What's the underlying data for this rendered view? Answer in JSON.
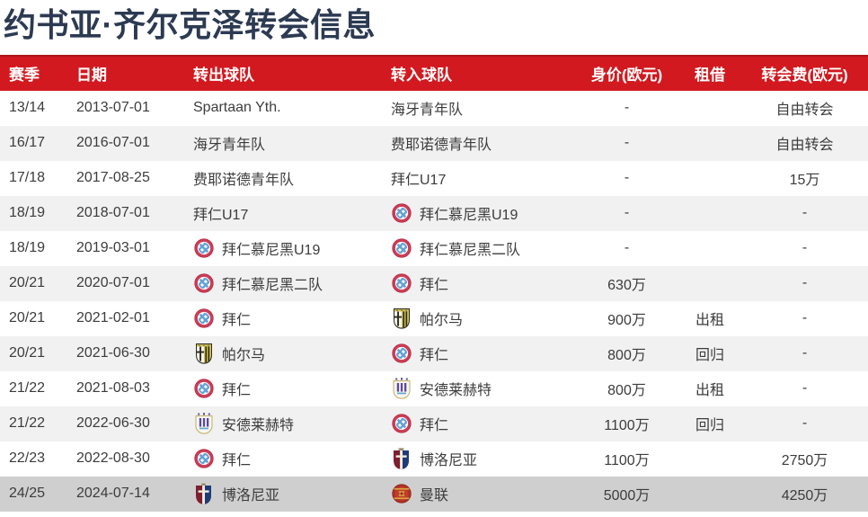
{
  "page": {
    "title": "约书亚·齐尔克泽转会信息"
  },
  "table": {
    "columns": [
      "赛季",
      "日期",
      "转出球队",
      "转入球队",
      "身价(欧元)",
      "租借",
      "转会费(欧元)"
    ],
    "rows": [
      {
        "season": "13/14",
        "date": "2013-07-01",
        "from": {
          "name": "Spartaan Yth.",
          "logo": ""
        },
        "to": {
          "name": "海牙青年队",
          "logo": ""
        },
        "value": "-",
        "loan": "",
        "fee": "自由转会",
        "highlight": false
      },
      {
        "season": "16/17",
        "date": "2016-07-01",
        "from": {
          "name": "海牙青年队",
          "logo": ""
        },
        "to": {
          "name": "费耶诺德青年队",
          "logo": ""
        },
        "value": "-",
        "loan": "",
        "fee": "自由转会",
        "highlight": false
      },
      {
        "season": "17/18",
        "date": "2017-08-25",
        "from": {
          "name": "费耶诺德青年队",
          "logo": ""
        },
        "to": {
          "name": "拜仁U17",
          "logo": ""
        },
        "value": "-",
        "loan": "",
        "fee": "15万",
        "highlight": false
      },
      {
        "season": "18/19",
        "date": "2018-07-01",
        "from": {
          "name": "拜仁U17",
          "logo": ""
        },
        "to": {
          "name": "拜仁慕尼黑U19",
          "logo": "bayern"
        },
        "value": "-",
        "loan": "",
        "fee": "-",
        "highlight": false
      },
      {
        "season": "18/19",
        "date": "2019-03-01",
        "from": {
          "name": "拜仁慕尼黑U19",
          "logo": "bayern"
        },
        "to": {
          "name": "拜仁慕尼黑二队",
          "logo": "bayern"
        },
        "value": "-",
        "loan": "",
        "fee": "-",
        "highlight": false
      },
      {
        "season": "20/21",
        "date": "2020-07-01",
        "from": {
          "name": "拜仁慕尼黑二队",
          "logo": "bayern"
        },
        "to": {
          "name": "拜仁",
          "logo": "bayern"
        },
        "value": "630万",
        "loan": "",
        "fee": "-",
        "highlight": false
      },
      {
        "season": "20/21",
        "date": "2021-02-01",
        "from": {
          "name": "拜仁",
          "logo": "bayern"
        },
        "to": {
          "name": "帕尔马",
          "logo": "parma"
        },
        "value": "900万",
        "loan": "出租",
        "fee": "-",
        "highlight": false
      },
      {
        "season": "20/21",
        "date": "2021-06-30",
        "from": {
          "name": "帕尔马",
          "logo": "parma"
        },
        "to": {
          "name": "拜仁",
          "logo": "bayern"
        },
        "value": "800万",
        "loan": "回归",
        "fee": "-",
        "highlight": false
      },
      {
        "season": "21/22",
        "date": "2021-08-03",
        "from": {
          "name": "拜仁",
          "logo": "bayern"
        },
        "to": {
          "name": "安德莱赫特",
          "logo": "anderlecht"
        },
        "value": "800万",
        "loan": "出租",
        "fee": "-",
        "highlight": false
      },
      {
        "season": "21/22",
        "date": "2022-06-30",
        "from": {
          "name": "安德莱赫特",
          "logo": "anderlecht"
        },
        "to": {
          "name": "拜仁",
          "logo": "bayern"
        },
        "value": "1100万",
        "loan": "回归",
        "fee": "-",
        "highlight": false
      },
      {
        "season": "22/23",
        "date": "2022-08-30",
        "from": {
          "name": "拜仁",
          "logo": "bayern"
        },
        "to": {
          "name": "博洛尼亚",
          "logo": "bologna"
        },
        "value": "1100万",
        "loan": "",
        "fee": "2750万",
        "highlight": false
      },
      {
        "season": "24/25",
        "date": "2024-07-14",
        "from": {
          "name": "博洛尼亚",
          "logo": "bologna"
        },
        "to": {
          "name": "曼联",
          "logo": "manutd"
        },
        "value": "5000万",
        "loan": "",
        "fee": "4250万",
        "highlight": true
      }
    ]
  },
  "icons": {
    "bayern": "bayern-munich-crest-icon",
    "parma": "parma-crest-icon",
    "anderlecht": "anderlecht-crest-icon",
    "bologna": "bologna-crest-icon",
    "manutd": "manchester-united-crest-icon"
  },
  "colors": {
    "header_bg": "#d2191f",
    "header_border": "#a8151a",
    "header_text": "#ffffff",
    "row_alt_bg": "#f1f1f1",
    "highlight_row_bg": "#cfcfcf",
    "title_text": "#2c3a52",
    "body_text": "#3c3c3c"
  }
}
